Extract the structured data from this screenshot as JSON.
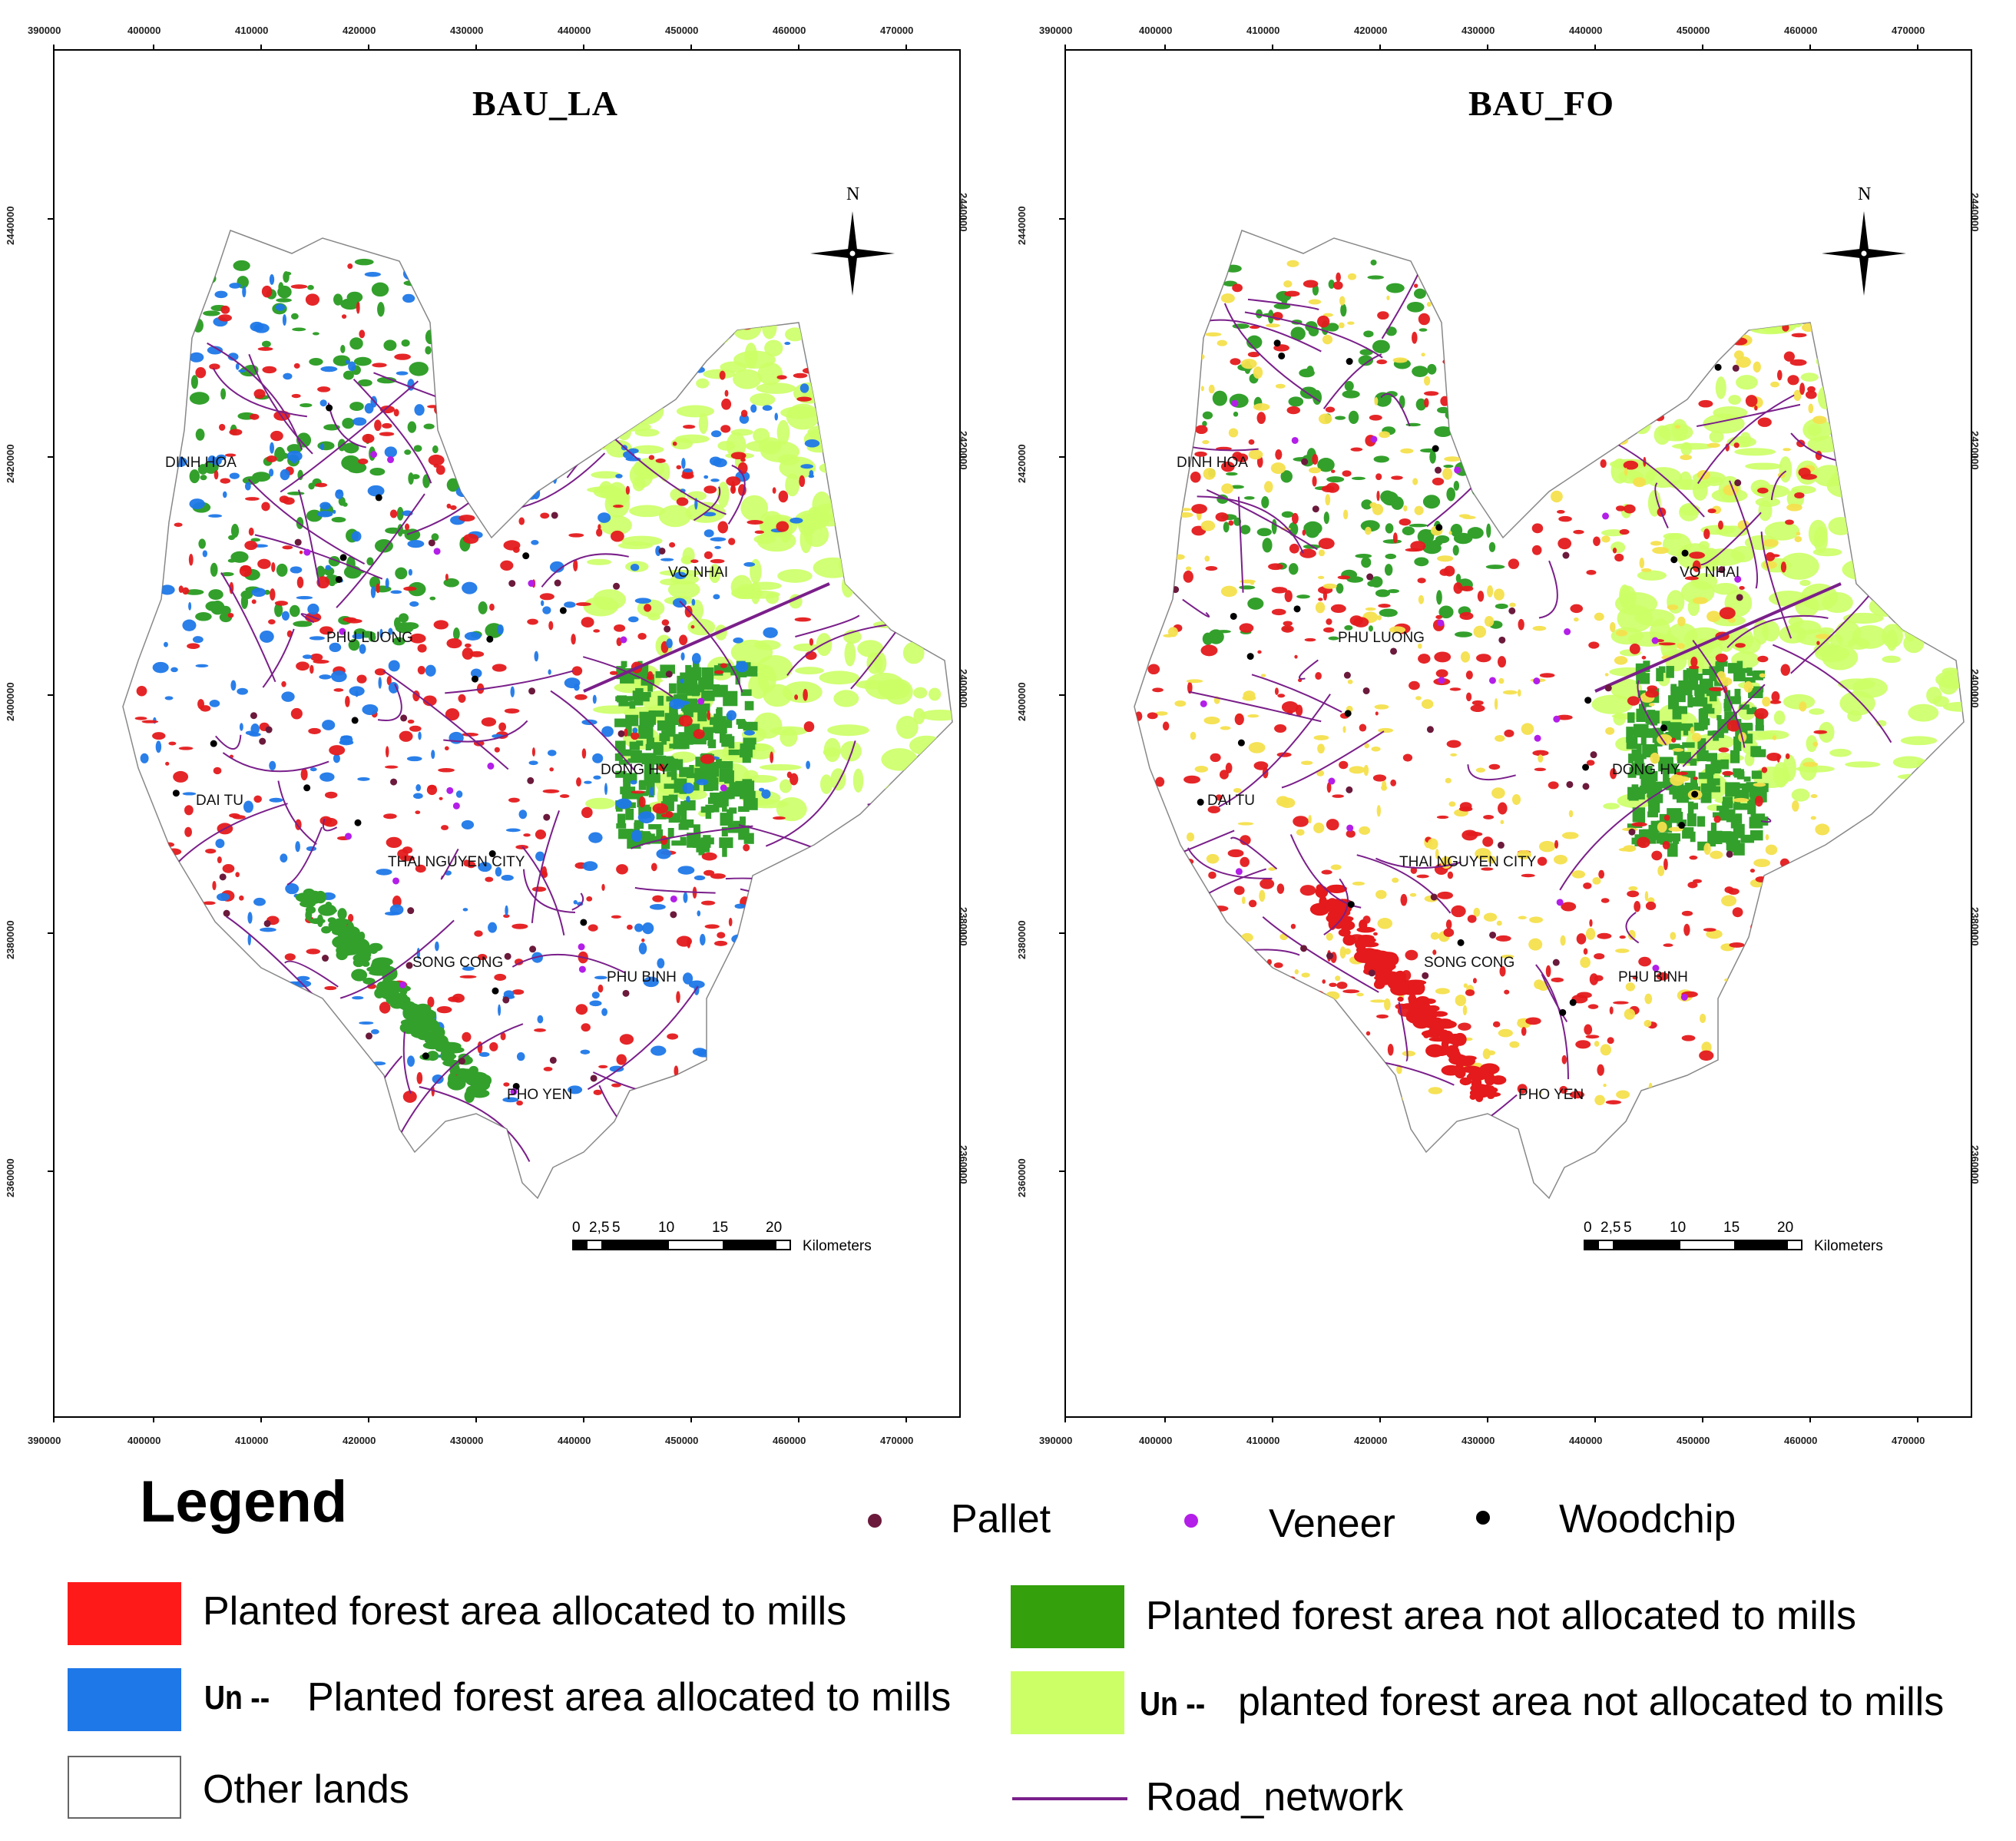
{
  "maps": [
    {
      "title": "BAU_LA",
      "colors": {
        "allocated": "#e41a1c",
        "un_allocated": "#1f78e8",
        "not_allocated": "#33a02c",
        "un_not_allocated": "#ccff66"
      },
      "places": [
        "DINH HOA",
        "PHU LUONG",
        "VO NHAI",
        "DONG HY",
        "DAI TU",
        "THAI NGUYEN CITY",
        "SONG CONG",
        "PHU BINH",
        "PHO YEN"
      ]
    },
    {
      "title": "BAU_FO",
      "colors": {
        "allocated": "#e41a1c",
        "un_allocated": "#f4e04d",
        "not_allocated": "#33a02c",
        "un_not_allocated": "#ccff66"
      },
      "places": [
        "DINH HOA",
        "PHU LUONG",
        "VO NHAI",
        "DONG HY",
        "DAI TU",
        "THAI NGUYEN CITY",
        "SONG CONG",
        "PHU BINH",
        "PHO YEN"
      ]
    }
  ],
  "axes": {
    "x_ticks": [
      "390000",
      "400000",
      "410000",
      "420000",
      "430000",
      "440000",
      "450000",
      "460000",
      "470000"
    ],
    "y_ticks": [
      "2440000",
      "2420000",
      "2400000",
      "2380000",
      "2360000"
    ]
  },
  "north_label": "N",
  "scale_bar": {
    "ticks": [
      "0",
      "2,5",
      "5",
      "10",
      "15",
      "20"
    ],
    "unit": "Kilometers"
  },
  "legend": {
    "title": "Legend",
    "mills": [
      {
        "label": "Pallet",
        "color": "#6b1a3c"
      },
      {
        "label": "Veneer",
        "color": "#b31ee8"
      },
      {
        "label": "Woodchip",
        "color": "#000000"
      }
    ],
    "areas": [
      {
        "prefix": "",
        "label": "Planted forest area allocated to mills",
        "color": "#ff1a1a"
      },
      {
        "prefix": "Un --",
        "label": "Planted forest area allocated to mills",
        "color": "#1f78e8"
      },
      {
        "prefix": "",
        "label": "Other lands",
        "color": "#ffffff"
      },
      {
        "prefix": "",
        "label": "Planted forest area not allocated to mills",
        "color": "#33a00c"
      },
      {
        "prefix": "Un --",
        "label": "planted forest area not allocated to mills",
        "color": "#ccff66"
      }
    ],
    "road_label": "Road_network",
    "road_color": "#7a1f8a"
  }
}
